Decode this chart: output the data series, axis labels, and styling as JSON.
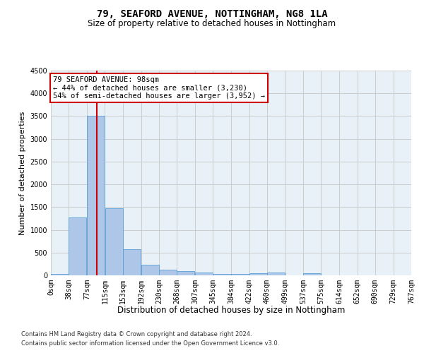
{
  "title1": "79, SEAFORD AVENUE, NOTTINGHAM, NG8 1LA",
  "title2": "Size of property relative to detached houses in Nottingham",
  "xlabel": "Distribution of detached houses by size in Nottingham",
  "ylabel": "Number of detached properties",
  "bin_labels": [
    "0sqm",
    "38sqm",
    "77sqm",
    "115sqm",
    "153sqm",
    "192sqm",
    "230sqm",
    "268sqm",
    "307sqm",
    "345sqm",
    "384sqm",
    "422sqm",
    "460sqm",
    "499sqm",
    "537sqm",
    "575sqm",
    "614sqm",
    "652sqm",
    "690sqm",
    "729sqm",
    "767sqm"
  ],
  "bin_edges": [
    0,
    38,
    77,
    115,
    153,
    192,
    230,
    268,
    307,
    345,
    384,
    422,
    460,
    499,
    537,
    575,
    614,
    652,
    690,
    729,
    767
  ],
  "bar_heights": [
    30,
    1280,
    3500,
    1480,
    580,
    240,
    120,
    90,
    55,
    30,
    25,
    45,
    55,
    0,
    50,
    0,
    0,
    0,
    0,
    0
  ],
  "bar_color": "#aec6e8",
  "bar_edge_color": "#5a9fd4",
  "grid_color": "#cccccc",
  "bg_color": "#e8f0f8",
  "property_size": 98,
  "red_line_x": 98,
  "annotation_line1": "79 SEAFORD AVENUE: 98sqm",
  "annotation_line2": "← 44% of detached houses are smaller (3,230)",
  "annotation_line3": "54% of semi-detached houses are larger (3,952) →",
  "annotation_box_color": "#ffffff",
  "annotation_edge_color": "#cc0000",
  "ylim": [
    0,
    4500
  ],
  "yticks": [
    0,
    500,
    1000,
    1500,
    2000,
    2500,
    3000,
    3500,
    4000,
    4500
  ],
  "footer1": "Contains HM Land Registry data © Crown copyright and database right 2024.",
  "footer2": "Contains public sector information licensed under the Open Government Licence v3.0.",
  "title1_fontsize": 10,
  "title2_fontsize": 8.5,
  "xlabel_fontsize": 8.5,
  "ylabel_fontsize": 8,
  "tick_fontsize": 7,
  "footer_fontsize": 6,
  "annot_fontsize": 7.5
}
